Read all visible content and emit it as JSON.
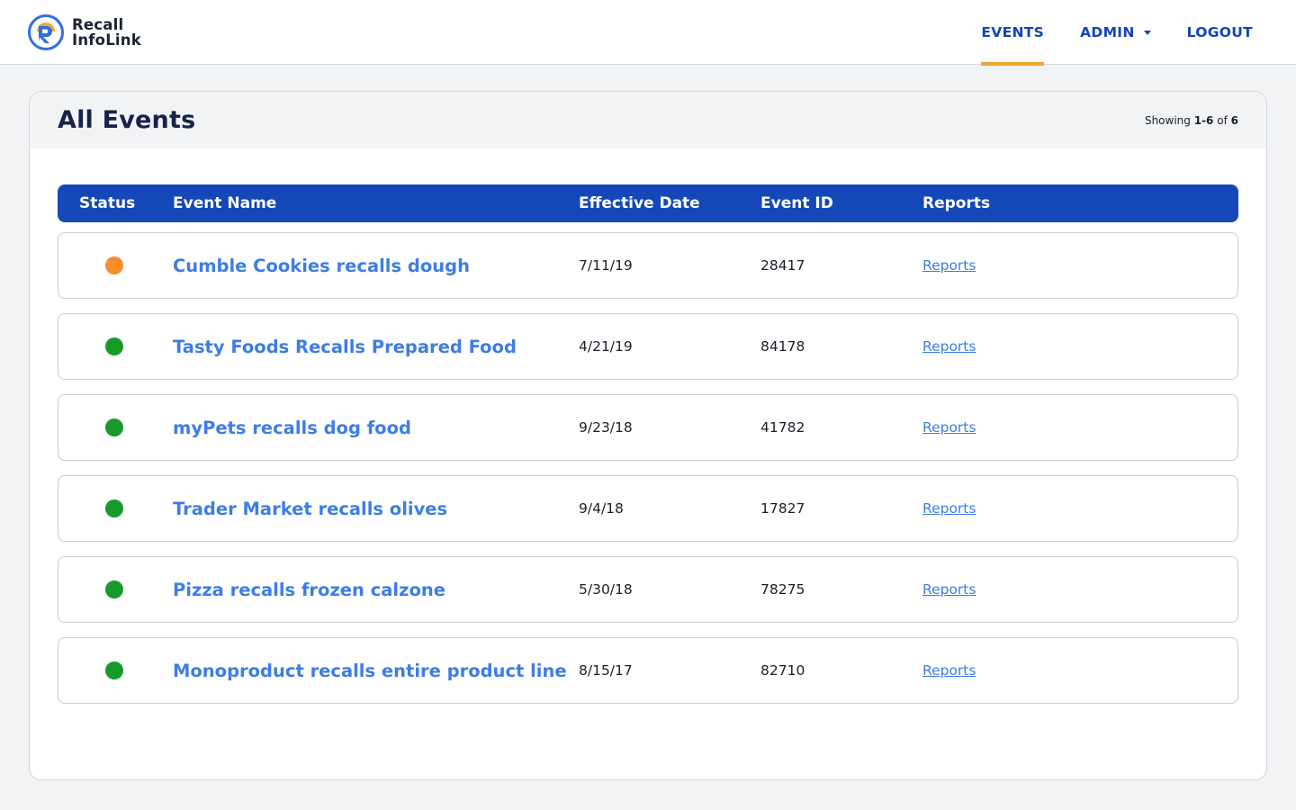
{
  "app": {
    "logo_line1": "Recall",
    "logo_line2": "InfoLink",
    "logo_colors": {
      "blue": "#2f6fe0",
      "orange": "#f3a430"
    }
  },
  "nav": {
    "events_label": "EVENTS",
    "admin_label": "ADMIN",
    "logout_label": "LOGOUT",
    "active": "EVENTS",
    "accent_color": "#f3a430",
    "text_color": "#1444b8"
  },
  "page": {
    "title": "All Events",
    "showing_prefix": "Showing",
    "showing_range": "1-6",
    "showing_of": "of",
    "showing_total": "6"
  },
  "table": {
    "header_color": "#1448b8",
    "columns": [
      "Status",
      "Event Name",
      "Effective Date",
      "Event ID",
      "Reports"
    ],
    "rows": [
      {
        "status": "warning",
        "status_color": "#f78d2b",
        "name": "Cumble Cookies recalls dough",
        "date": "7/11/19",
        "id": "28417",
        "reports": "Reports"
      },
      {
        "status": "active",
        "status_color": "#179a2a",
        "name": "Tasty Foods Recalls Prepared Food",
        "date": "4/21/19",
        "id": "84178",
        "reports": "Reports"
      },
      {
        "status": "active",
        "status_color": "#179a2a",
        "name": "myPets recalls dog food",
        "date": "9/23/18",
        "id": "41782",
        "reports": "Reports"
      },
      {
        "status": "active",
        "status_color": "#179a2a",
        "name": "Trader Market recalls olives",
        "date": "9/4/18",
        "id": "17827",
        "reports": "Reports"
      },
      {
        "status": "active",
        "status_color": "#179a2a",
        "name": "Pizza recalls frozen calzone",
        "date": "5/30/18",
        "id": "78275",
        "reports": "Reports"
      },
      {
        "status": "active",
        "status_color": "#179a2a",
        "name": "Monoproduct recalls entire product line",
        "date": "8/15/17",
        "id": "82710",
        "reports": "Reports"
      }
    ]
  }
}
